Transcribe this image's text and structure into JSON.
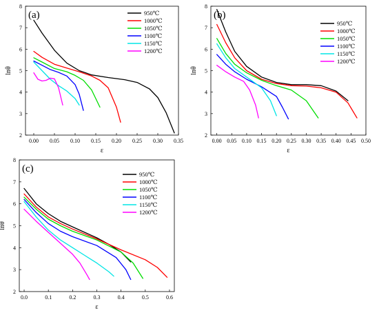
{
  "colors": {
    "950": "#000000",
    "1000": "#ff0000",
    "1050": "#00dd00",
    "1100": "#0000ff",
    "1150": "#00e5e5",
    "1200": "#ff00ff"
  },
  "chart_data": [
    {
      "type": "line",
      "panel_label": "(a)",
      "xlabel": "ε",
      "ylabel": "lnθ",
      "xlim": [
        -0.02,
        0.35
      ],
      "ylim": [
        2,
        8
      ],
      "xticks": [
        0.0,
        0.05,
        0.1,
        0.15,
        0.2,
        0.25,
        0.3,
        0.35
      ],
      "xtick_labels": [
        "0.00",
        "0.05",
        "0.10",
        "0.15",
        "0.20",
        "0.25",
        "0.30",
        "0.35"
      ],
      "yticks": [
        2,
        3,
        4,
        5,
        6,
        7,
        8
      ],
      "ytick_labels": [
        "2",
        "3",
        "4",
        "5",
        "6",
        "7",
        "8"
      ],
      "legend_position": "top-right",
      "series": [
        {
          "name": "950℃",
          "color_key": "950",
          "points": [
            [
              0.0,
              7.35
            ],
            [
              0.02,
              6.75
            ],
            [
              0.05,
              5.95
            ],
            [
              0.08,
              5.35
            ],
            [
              0.11,
              5.0
            ],
            [
              0.14,
              4.8
            ],
            [
              0.18,
              4.68
            ],
            [
              0.22,
              4.58
            ],
            [
              0.25,
              4.45
            ],
            [
              0.28,
              4.15
            ],
            [
              0.3,
              3.75
            ],
            [
              0.32,
              3.05
            ],
            [
              0.34,
              2.1
            ]
          ]
        },
        {
          "name": "1000℃",
          "color_key": "1000",
          "points": [
            [
              0.0,
              5.9
            ],
            [
              0.02,
              5.62
            ],
            [
              0.05,
              5.3
            ],
            [
              0.08,
              5.12
            ],
            [
              0.11,
              4.95
            ],
            [
              0.14,
              4.75
            ],
            [
              0.16,
              4.55
            ],
            [
              0.18,
              4.2
            ],
            [
              0.2,
              3.3
            ],
            [
              0.21,
              2.6
            ]
          ]
        },
        {
          "name": "1050℃",
          "color_key": "1050",
          "points": [
            [
              0.0,
              5.6
            ],
            [
              0.02,
              5.4
            ],
            [
              0.05,
              5.1
            ],
            [
              0.08,
              4.95
            ],
            [
              0.1,
              4.78
            ],
            [
              0.12,
              4.55
            ],
            [
              0.14,
              4.1
            ],
            [
              0.16,
              3.3
            ]
          ]
        },
        {
          "name": "1100℃",
          "color_key": "1100",
          "points": [
            [
              0.0,
              5.45
            ],
            [
              0.02,
              5.25
            ],
            [
              0.04,
              5.05
            ],
            [
              0.06,
              4.92
            ],
            [
              0.08,
              4.75
            ],
            [
              0.1,
              4.35
            ],
            [
              0.11,
              3.9
            ],
            [
              0.12,
              3.15
            ]
          ]
        },
        {
          "name": "1150℃",
          "color_key": "1150",
          "points": [
            [
              0.0,
              5.4
            ],
            [
              0.02,
              5.0
            ],
            [
              0.04,
              4.6
            ],
            [
              0.06,
              4.3
            ],
            [
              0.08,
              4.05
            ],
            [
              0.1,
              3.7
            ],
            [
              0.11,
              3.4
            ]
          ]
        },
        {
          "name": "1200℃",
          "color_key": "1200",
          "points": [
            [
              0.0,
              4.9
            ],
            [
              0.01,
              4.6
            ],
            [
              0.02,
              4.52
            ],
            [
              0.03,
              4.55
            ],
            [
              0.04,
              4.65
            ],
            [
              0.05,
              4.62
            ],
            [
              0.06,
              4.2
            ],
            [
              0.07,
              3.4
            ]
          ]
        }
      ]
    },
    {
      "type": "line",
      "panel_label": "(b)",
      "xlabel": "ε",
      "ylabel": "lnθ",
      "xlim": [
        -0.02,
        0.5
      ],
      "ylim": [
        2,
        8
      ],
      "xticks": [
        0.0,
        0.05,
        0.1,
        0.15,
        0.2,
        0.25,
        0.3,
        0.35,
        0.4,
        0.45,
        0.5
      ],
      "xtick_labels": [
        "0.00",
        "0.05",
        "0.10",
        "0.15",
        "0.20",
        "0.25",
        "0.30",
        "0.35",
        "0.40",
        "0.45",
        "0.50"
      ],
      "yticks": [
        2,
        3,
        4,
        5,
        6,
        7,
        8
      ],
      "ytick_labels": [
        "2",
        "3",
        "4",
        "5",
        "6",
        "7",
        "8"
      ],
      "legend_position": "top-right",
      "series": [
        {
          "name": "950℃",
          "color_key": "950",
          "points": [
            [
              0.0,
              7.85
            ],
            [
              0.03,
              6.8
            ],
            [
              0.06,
              5.9
            ],
            [
              0.1,
              5.2
            ],
            [
              0.15,
              4.7
            ],
            [
              0.2,
              4.45
            ],
            [
              0.25,
              4.35
            ],
            [
              0.3,
              4.35
            ],
            [
              0.35,
              4.3
            ],
            [
              0.4,
              4.05
            ],
            [
              0.44,
              3.6
            ]
          ]
        },
        {
          "name": "1000℃",
          "color_key": "1000",
          "points": [
            [
              0.0,
              7.15
            ],
            [
              0.03,
              6.3
            ],
            [
              0.06,
              5.6
            ],
            [
              0.1,
              5.0
            ],
            [
              0.15,
              4.6
            ],
            [
              0.2,
              4.4
            ],
            [
              0.25,
              4.3
            ],
            [
              0.3,
              4.28
            ],
            [
              0.35,
              4.2
            ],
            [
              0.4,
              4.0
            ],
            [
              0.44,
              3.5
            ],
            [
              0.47,
              2.8
            ]
          ]
        },
        {
          "name": "1050℃",
          "color_key": "1050",
          "points": [
            [
              0.0,
              6.5
            ],
            [
              0.03,
              5.8
            ],
            [
              0.06,
              5.3
            ],
            [
              0.1,
              4.9
            ],
            [
              0.15,
              4.55
            ],
            [
              0.2,
              4.3
            ],
            [
              0.25,
              4.1
            ],
            [
              0.3,
              3.6
            ],
            [
              0.34,
              2.8
            ]
          ]
        },
        {
          "name": "1100℃",
          "color_key": "1100",
          "points": [
            [
              0.0,
              5.75
            ],
            [
              0.03,
              5.3
            ],
            [
              0.06,
              4.95
            ],
            [
              0.1,
              4.6
            ],
            [
              0.15,
              4.25
            ],
            [
              0.2,
              3.8
            ],
            [
              0.22,
              3.3
            ],
            [
              0.24,
              2.75
            ]
          ]
        },
        {
          "name": "1150℃",
          "color_key": "1150",
          "points": [
            [
              0.0,
              6.25
            ],
            [
              0.03,
              5.6
            ],
            [
              0.06,
              5.1
            ],
            [
              0.1,
              4.7
            ],
            [
              0.15,
              4.2
            ],
            [
              0.18,
              3.6
            ],
            [
              0.2,
              2.9
            ]
          ]
        },
        {
          "name": "1200℃",
          "color_key": "1200",
          "points": [
            [
              0.0,
              5.25
            ],
            [
              0.03,
              4.95
            ],
            [
              0.06,
              4.7
            ],
            [
              0.09,
              4.5
            ],
            [
              0.11,
              4.1
            ],
            [
              0.13,
              3.4
            ],
            [
              0.14,
              2.8
            ]
          ]
        }
      ]
    },
    {
      "type": "line",
      "panel_label": "(c)",
      "xlabel": "ε",
      "ylabel": "lnθ",
      "xlim": [
        -0.02,
        0.62
      ],
      "ylim": [
        2,
        8
      ],
      "xticks": [
        0.0,
        0.1,
        0.2,
        0.3,
        0.4,
        0.5,
        0.6
      ],
      "xtick_labels": [
        "0.0",
        "0.1",
        "0.2",
        "0.3",
        "0.4",
        "0.5",
        "0.6"
      ],
      "yticks": [
        2,
        3,
        4,
        5,
        6,
        7,
        8
      ],
      "ytick_labels": [
        "2",
        "3",
        "4",
        "5",
        "6",
        "7",
        "8"
      ],
      "legend_position": "top-right",
      "series": [
        {
          "name": "950℃",
          "color_key": "950",
          "points": [
            [
              0.0,
              6.7
            ],
            [
              0.05,
              6.0
            ],
            [
              0.1,
              5.55
            ],
            [
              0.15,
              5.2
            ],
            [
              0.2,
              4.95
            ],
            [
              0.25,
              4.7
            ],
            [
              0.3,
              4.45
            ],
            [
              0.35,
              4.15
            ],
            [
              0.4,
              3.8
            ],
            [
              0.44,
              3.35
            ]
          ]
        },
        {
          "name": "1000℃",
          "color_key": "1000",
          "points": [
            [
              0.0,
              6.45
            ],
            [
              0.05,
              5.85
            ],
            [
              0.1,
              5.4
            ],
            [
              0.15,
              5.1
            ],
            [
              0.2,
              4.85
            ],
            [
              0.3,
              4.4
            ],
            [
              0.4,
              3.9
            ],
            [
              0.5,
              3.45
            ],
            [
              0.55,
              3.1
            ],
            [
              0.59,
              2.65
            ]
          ]
        },
        {
          "name": "1050℃",
          "color_key": "1050",
          "points": [
            [
              0.0,
              6.3
            ],
            [
              0.05,
              5.75
            ],
            [
              0.1,
              5.3
            ],
            [
              0.15,
              5.0
            ],
            [
              0.2,
              4.75
            ],
            [
              0.3,
              4.35
            ],
            [
              0.4,
              3.8
            ],
            [
              0.45,
              3.3
            ],
            [
              0.49,
              2.6
            ]
          ]
        },
        {
          "name": "1100℃",
          "color_key": "1100",
          "points": [
            [
              0.0,
              6.2
            ],
            [
              0.05,
              5.6
            ],
            [
              0.1,
              5.1
            ],
            [
              0.15,
              4.75
            ],
            [
              0.2,
              4.5
            ],
            [
              0.3,
              4.1
            ],
            [
              0.38,
              3.55
            ],
            [
              0.42,
              3.0
            ],
            [
              0.44,
              2.55
            ]
          ]
        },
        {
          "name": "1150℃",
          "color_key": "1150",
          "points": [
            [
              0.0,
              6.1
            ],
            [
              0.05,
              5.4
            ],
            [
              0.1,
              4.8
            ],
            [
              0.15,
              4.35
            ],
            [
              0.2,
              4.0
            ],
            [
              0.25,
              3.65
            ],
            [
              0.3,
              3.3
            ],
            [
              0.35,
              2.9
            ],
            [
              0.37,
              2.7
            ]
          ]
        },
        {
          "name": "1200℃",
          "color_key": "1200",
          "points": [
            [
              0.0,
              5.75
            ],
            [
              0.05,
              5.2
            ],
            [
              0.1,
              4.7
            ],
            [
              0.15,
              4.2
            ],
            [
              0.2,
              3.7
            ],
            [
              0.23,
              3.3
            ],
            [
              0.26,
              2.75
            ],
            [
              0.27,
              2.55
            ]
          ]
        }
      ]
    }
  ]
}
